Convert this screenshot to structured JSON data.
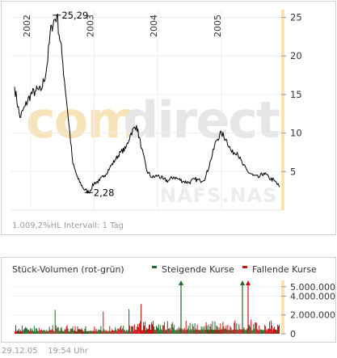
{
  "price_chart": {
    "years": [
      "2002",
      "2003",
      "2004",
      "2005"
    ],
    "y_ticks": [
      "25",
      "20",
      "15",
      "10",
      "5"
    ],
    "max_label": "25,29",
    "min_label": "2,28",
    "info": "1.009,2%HL  Intervall: 1 Tag",
    "watermark": {
      "part1": "com",
      "part2": "direct",
      "sub": "NAFS.NAS"
    }
  },
  "volume_chart": {
    "title": "Stück-Volumen (rot-grün)",
    "legend_up": "Steigende Kurse",
    "legend_down": "Fallende Kurse",
    "y_ticks": [
      "5.000.000",
      "4.000.000",
      "2.000.000",
      "0"
    ],
    "colors": {
      "up": "#1a6e2a",
      "down": "#cc1111"
    }
  },
  "timestamp": {
    "date": "29.12.05",
    "time": "19:54 Uhr"
  },
  "chart_data": [
    {
      "type": "line",
      "x": [
        "2001-10",
        "2001-11",
        "2001-12",
        "2002-01",
        "2002-02",
        "2002-03",
        "2002-04",
        "2002-05",
        "2002-06",
        "2002-07",
        "2002-08",
        "2002-09",
        "2002-10",
        "2002-11",
        "2002-12",
        "2003-01",
        "2003-02",
        "2003-03",
        "2003-04",
        "2003-05",
        "2003-06",
        "2003-07",
        "2003-08",
        "2003-09",
        "2003-10",
        "2003-11",
        "2003-12",
        "2004-01",
        "2004-02",
        "2004-03",
        "2004-04",
        "2004-05",
        "2004-06",
        "2004-07",
        "2004-08",
        "2004-09",
        "2004-10",
        "2004-11",
        "2004-12",
        "2005-01",
        "2005-02",
        "2005-03",
        "2005-04",
        "2005-05",
        "2005-06",
        "2005-07",
        "2005-08",
        "2005-09",
        "2005-10",
        "2005-11",
        "2005-12"
      ],
      "values": [
        16.0,
        12.0,
        13.5,
        15.0,
        15.5,
        15.5,
        18.0,
        24.0,
        25.29,
        20.0,
        13.0,
        6.0,
        4.0,
        2.8,
        2.28,
        3.5,
        3.8,
        4.5,
        5.5,
        6.5,
        7.5,
        8.0,
        10.0,
        11.0,
        8.0,
        5.0,
        4.2,
        4.5,
        4.0,
        3.8,
        4.3,
        4.0,
        3.7,
        3.6,
        4.0,
        3.8,
        4.2,
        6.5,
        9.0,
        10.0,
        9.0,
        7.5,
        7.5,
        6.0,
        5.0,
        4.5,
        4.2,
        4.8,
        4.2,
        3.8,
        3.0
      ],
      "ylim": [
        0,
        26
      ],
      "annotations": [
        {
          "label": "25,29",
          "value": 25.29
        },
        {
          "label": "2,28",
          "value": 2.28
        }
      ]
    },
    {
      "type": "bar",
      "series": [
        {
          "name": "Steigende Kurse"
        },
        {
          "name": "Fallende Kurse"
        }
      ],
      "ylim": [
        0,
        5500000
      ],
      "values_hint": "daily volume mostly between 0 and 1.500.000, single spikes exceeding 5.000.000"
    }
  ]
}
